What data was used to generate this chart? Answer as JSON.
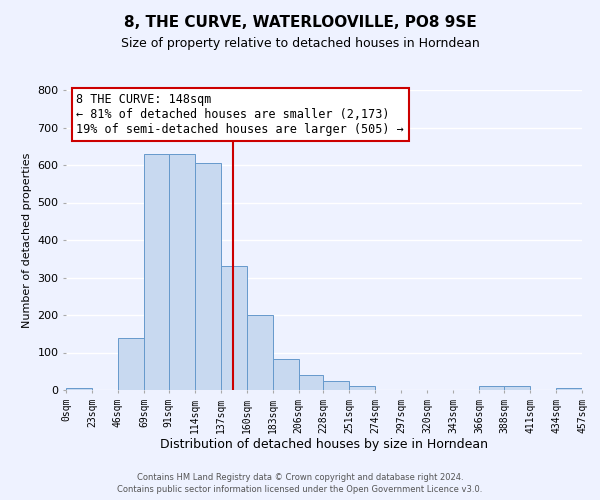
{
  "title": "8, THE CURVE, WATERLOOVILLE, PO8 9SE",
  "subtitle": "Size of property relative to detached houses in Horndean",
  "xlabel": "Distribution of detached houses by size in Horndean",
  "ylabel": "Number of detached properties",
  "footer_line1": "Contains HM Land Registry data © Crown copyright and database right 2024.",
  "footer_line2": "Contains public sector information licensed under the Open Government Licence v3.0.",
  "annotation_line1": "8 THE CURVE: 148sqm",
  "annotation_line2": "← 81% of detached houses are smaller (2,173)",
  "annotation_line3": "19% of semi-detached houses are larger (505) →",
  "bin_edges": [
    0,
    23,
    46,
    69,
    91,
    114,
    137,
    160,
    183,
    206,
    228,
    251,
    274,
    297,
    320,
    343,
    366,
    388,
    411,
    434,
    457
  ],
  "bin_counts": [
    5,
    0,
    140,
    630,
    630,
    605,
    330,
    200,
    83,
    40,
    25,
    12,
    0,
    0,
    0,
    0,
    10,
    10,
    0,
    5
  ],
  "bar_color": "#c8d9f0",
  "bar_edge_color": "#6699cc",
  "vline_x": 148,
  "vline_color": "#cc0000",
  "ylim": [
    0,
    800
  ],
  "yticks": [
    0,
    100,
    200,
    300,
    400,
    500,
    600,
    700,
    800
  ],
  "tick_labels": [
    "0sqm",
    "23sqm",
    "46sqm",
    "69sqm",
    "91sqm",
    "114sqm",
    "137sqm",
    "160sqm",
    "183sqm",
    "206sqm",
    "228sqm",
    "251sqm",
    "274sqm",
    "297sqm",
    "320sqm",
    "343sqm",
    "366sqm",
    "388sqm",
    "411sqm",
    "434sqm",
    "457sqm"
  ],
  "bg_color": "#eef2ff",
  "grid_color": "#ffffff",
  "annotation_box_color": "#ffffff",
  "annotation_box_edge": "#cc0000",
  "title_fontsize": 11,
  "subtitle_fontsize": 9,
  "ylabel_fontsize": 8,
  "xlabel_fontsize": 9
}
